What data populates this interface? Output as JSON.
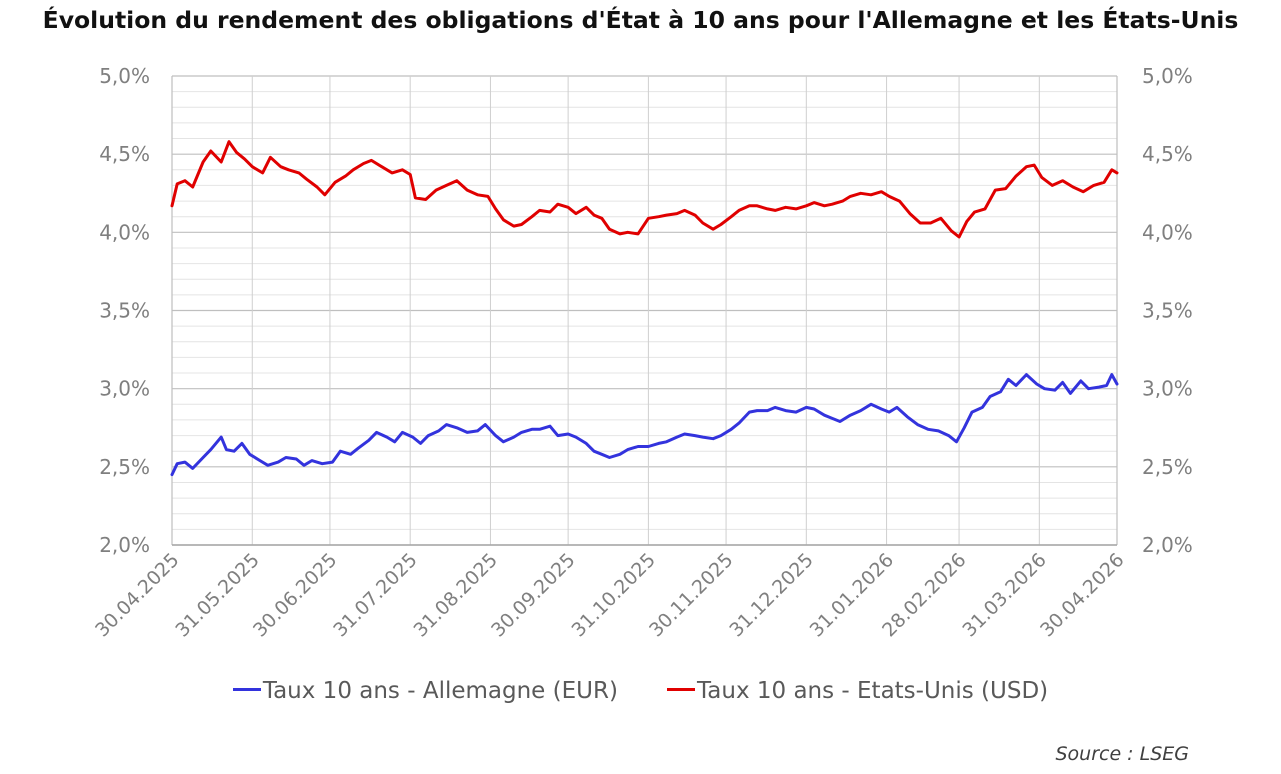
{
  "chart_data": {
    "type": "line",
    "title": "Évolution du rendement des obligations d'État à 10 ans pour l'Allemagne et les États-Unis",
    "source": "Source : LSEG",
    "y_left": {
      "ylim": [
        2.0,
        5.0
      ],
      "ticks": [
        "2,0%",
        "2,5%",
        "3,0%",
        "3,5%",
        "4,0%",
        "4,5%",
        "5,0%"
      ]
    },
    "y_right": {
      "ylim": [
        2.0,
        5.0
      ],
      "ticks": [
        "2,0%",
        "2,5%",
        "3,0%",
        "3,5%",
        "4,0%",
        "4,5%",
        "5,0%"
      ]
    },
    "x_start": "2025-04-30",
    "x_end": "2026-04-30",
    "x_ticks": [
      {
        "label": "30.04.2025",
        "date": "2025-04-30"
      },
      {
        "label": "31.05.2025",
        "date": "2025-05-31"
      },
      {
        "label": "30.06.2025",
        "date": "2025-06-30"
      },
      {
        "label": "31.07.2025",
        "date": "2025-07-31"
      },
      {
        "label": "31.08.2025",
        "date": "2025-08-31"
      },
      {
        "label": "30.09.2025",
        "date": "2025-09-30"
      },
      {
        "label": "31.10.2025",
        "date": "2025-10-31"
      },
      {
        "label": "30.11.2025",
        "date": "2025-11-30"
      },
      {
        "label": "31.12.2025",
        "date": "2025-12-31"
      },
      {
        "label": "31.01.2026",
        "date": "2026-01-31"
      },
      {
        "label": "28.02.2026",
        "date": "2026-02-28"
      },
      {
        "label": "31.03.2026",
        "date": "2026-03-31"
      },
      {
        "label": "30.04.2026",
        "date": "2026-04-30"
      }
    ],
    "grid": true,
    "legend_position": "bottom",
    "series": [
      {
        "name": "Taux 10 ans - Allemagne (EUR)",
        "color": "#3333dd",
        "axis": "left",
        "points": [
          [
            "2025-04-30",
            2.45
          ],
          [
            "2025-05-02",
            2.52
          ],
          [
            "2025-05-05",
            2.53
          ],
          [
            "2025-05-08",
            2.49
          ],
          [
            "2025-05-12",
            2.56
          ],
          [
            "2025-05-15",
            2.61
          ],
          [
            "2025-05-19",
            2.69
          ],
          [
            "2025-05-21",
            2.61
          ],
          [
            "2025-05-24",
            2.6
          ],
          [
            "2025-05-27",
            2.65
          ],
          [
            "2025-05-30",
            2.58
          ],
          [
            "2025-06-03",
            2.54
          ],
          [
            "2025-06-06",
            2.51
          ],
          [
            "2025-06-10",
            2.53
          ],
          [
            "2025-06-13",
            2.56
          ],
          [
            "2025-06-17",
            2.55
          ],
          [
            "2025-06-20",
            2.51
          ],
          [
            "2025-06-23",
            2.54
          ],
          [
            "2025-06-27",
            2.52
          ],
          [
            "2025-07-01",
            2.53
          ],
          [
            "2025-07-04",
            2.6
          ],
          [
            "2025-07-08",
            2.58
          ],
          [
            "2025-07-11",
            2.62
          ],
          [
            "2025-07-15",
            2.67
          ],
          [
            "2025-07-18",
            2.72
          ],
          [
            "2025-07-22",
            2.69
          ],
          [
            "2025-07-25",
            2.66
          ],
          [
            "2025-07-28",
            2.72
          ],
          [
            "2025-08-01",
            2.69
          ],
          [
            "2025-08-04",
            2.65
          ],
          [
            "2025-08-07",
            2.7
          ],
          [
            "2025-08-11",
            2.73
          ],
          [
            "2025-08-14",
            2.77
          ],
          [
            "2025-08-18",
            2.75
          ],
          [
            "2025-08-22",
            2.72
          ],
          [
            "2025-08-26",
            2.73
          ],
          [
            "2025-08-29",
            2.77
          ],
          [
            "2025-09-02",
            2.7
          ],
          [
            "2025-09-05",
            2.66
          ],
          [
            "2025-09-09",
            2.69
          ],
          [
            "2025-09-12",
            2.72
          ],
          [
            "2025-09-16",
            2.74
          ],
          [
            "2025-09-19",
            2.74
          ],
          [
            "2025-09-23",
            2.76
          ],
          [
            "2025-09-26",
            2.7
          ],
          [
            "2025-09-30",
            2.71
          ],
          [
            "2025-10-03",
            2.69
          ],
          [
            "2025-10-07",
            2.65
          ],
          [
            "2025-10-10",
            2.6
          ],
          [
            "2025-10-13",
            2.58
          ],
          [
            "2025-10-16",
            2.56
          ],
          [
            "2025-10-20",
            2.58
          ],
          [
            "2025-10-23",
            2.61
          ],
          [
            "2025-10-27",
            2.63
          ],
          [
            "2025-10-31",
            2.63
          ],
          [
            "2025-11-04",
            2.65
          ],
          [
            "2025-11-07",
            2.66
          ],
          [
            "2025-11-11",
            2.69
          ],
          [
            "2025-11-14",
            2.71
          ],
          [
            "2025-11-18",
            2.7
          ],
          [
            "2025-11-21",
            2.69
          ],
          [
            "2025-11-25",
            2.68
          ],
          [
            "2025-11-28",
            2.7
          ],
          [
            "2025-12-02",
            2.74
          ],
          [
            "2025-12-05",
            2.78
          ],
          [
            "2025-12-09",
            2.85
          ],
          [
            "2025-12-12",
            2.86
          ],
          [
            "2025-12-16",
            2.86
          ],
          [
            "2025-12-19",
            2.88
          ],
          [
            "2025-12-23",
            2.86
          ],
          [
            "2025-12-27",
            2.85
          ],
          [
            "2025-12-31",
            2.88
          ],
          [
            "2026-01-03",
            2.87
          ],
          [
            "2026-01-07",
            2.83
          ],
          [
            "2026-01-10",
            2.81
          ],
          [
            "2026-01-13",
            2.79
          ],
          [
            "2026-01-17",
            2.83
          ],
          [
            "2026-01-21",
            2.86
          ],
          [
            "2026-01-25",
            2.9
          ],
          [
            "2026-01-29",
            2.87
          ],
          [
            "2026-02-01",
            2.85
          ],
          [
            "2026-02-04",
            2.88
          ],
          [
            "2026-02-08",
            2.82
          ],
          [
            "2026-02-12",
            2.77
          ],
          [
            "2026-02-16",
            2.74
          ],
          [
            "2026-02-20",
            2.73
          ],
          [
            "2026-02-24",
            2.7
          ],
          [
            "2026-02-27",
            2.66
          ],
          [
            "2026-03-02",
            2.75
          ],
          [
            "2026-03-05",
            2.85
          ],
          [
            "2026-03-09",
            2.88
          ],
          [
            "2026-03-12",
            2.95
          ],
          [
            "2026-03-16",
            2.98
          ],
          [
            "2026-03-19",
            3.06
          ],
          [
            "2026-03-22",
            3.02
          ],
          [
            "2026-03-26",
            3.09
          ],
          [
            "2026-03-30",
            3.03
          ],
          [
            "2026-04-02",
            3.0
          ],
          [
            "2026-04-06",
            2.99
          ],
          [
            "2026-04-09",
            3.04
          ],
          [
            "2026-04-12",
            2.97
          ],
          [
            "2026-04-16",
            3.05
          ],
          [
            "2026-04-19",
            3.0
          ],
          [
            "2026-04-23",
            3.01
          ],
          [
            "2026-04-26",
            3.02
          ],
          [
            "2026-04-28",
            3.09
          ],
          [
            "2026-04-30",
            3.03
          ]
        ]
      },
      {
        "name": "Taux 10 ans - Etats-Unis (USD)",
        "color": "#e00000",
        "axis": "left",
        "points": [
          [
            "2025-04-30",
            4.17
          ],
          [
            "2025-05-02",
            4.31
          ],
          [
            "2025-05-05",
            4.33
          ],
          [
            "2025-05-08",
            4.29
          ],
          [
            "2025-05-12",
            4.45
          ],
          [
            "2025-05-15",
            4.52
          ],
          [
            "2025-05-19",
            4.45
          ],
          [
            "2025-05-22",
            4.58
          ],
          [
            "2025-05-25",
            4.51
          ],
          [
            "2025-05-28",
            4.47
          ],
          [
            "2025-05-31",
            4.42
          ],
          [
            "2025-06-04",
            4.38
          ],
          [
            "2025-06-07",
            4.48
          ],
          [
            "2025-06-11",
            4.42
          ],
          [
            "2025-06-14",
            4.4
          ],
          [
            "2025-06-18",
            4.38
          ],
          [
            "2025-06-21",
            4.34
          ],
          [
            "2025-06-25",
            4.29
          ],
          [
            "2025-06-28",
            4.24
          ],
          [
            "2025-07-02",
            4.32
          ],
          [
            "2025-07-06",
            4.36
          ],
          [
            "2025-07-09",
            4.4
          ],
          [
            "2025-07-13",
            4.44
          ],
          [
            "2025-07-16",
            4.46
          ],
          [
            "2025-07-20",
            4.42
          ],
          [
            "2025-07-24",
            4.38
          ],
          [
            "2025-07-28",
            4.4
          ],
          [
            "2025-07-31",
            4.37
          ],
          [
            "2025-08-02",
            4.22
          ],
          [
            "2025-08-06",
            4.21
          ],
          [
            "2025-08-10",
            4.27
          ],
          [
            "2025-08-14",
            4.3
          ],
          [
            "2025-08-18",
            4.33
          ],
          [
            "2025-08-22",
            4.27
          ],
          [
            "2025-08-26",
            4.24
          ],
          [
            "2025-08-30",
            4.23
          ],
          [
            "2025-09-02",
            4.15
          ],
          [
            "2025-09-05",
            4.08
          ],
          [
            "2025-09-09",
            4.04
          ],
          [
            "2025-09-12",
            4.05
          ],
          [
            "2025-09-16",
            4.1
          ],
          [
            "2025-09-19",
            4.14
          ],
          [
            "2025-09-23",
            4.13
          ],
          [
            "2025-09-26",
            4.18
          ],
          [
            "2025-09-30",
            4.16
          ],
          [
            "2025-10-03",
            4.12
          ],
          [
            "2025-10-07",
            4.16
          ],
          [
            "2025-10-10",
            4.11
          ],
          [
            "2025-10-13",
            4.09
          ],
          [
            "2025-10-16",
            4.02
          ],
          [
            "2025-10-20",
            3.99
          ],
          [
            "2025-10-23",
            4.0
          ],
          [
            "2025-10-27",
            3.99
          ],
          [
            "2025-10-31",
            4.09
          ],
          [
            "2025-11-04",
            4.1
          ],
          [
            "2025-11-07",
            4.11
          ],
          [
            "2025-11-11",
            4.12
          ],
          [
            "2025-11-14",
            4.14
          ],
          [
            "2025-11-18",
            4.11
          ],
          [
            "2025-11-21",
            4.06
          ],
          [
            "2025-11-25",
            4.02
          ],
          [
            "2025-11-28",
            4.05
          ],
          [
            "2025-12-02",
            4.1
          ],
          [
            "2025-12-05",
            4.14
          ],
          [
            "2025-12-09",
            4.17
          ],
          [
            "2025-12-12",
            4.17
          ],
          [
            "2025-12-16",
            4.15
          ],
          [
            "2025-12-19",
            4.14
          ],
          [
            "2025-12-23",
            4.16
          ],
          [
            "2025-12-27",
            4.15
          ],
          [
            "2025-12-31",
            4.17
          ],
          [
            "2026-01-03",
            4.19
          ],
          [
            "2026-01-07",
            4.17
          ],
          [
            "2026-01-10",
            4.18
          ],
          [
            "2026-01-14",
            4.2
          ],
          [
            "2026-01-17",
            4.23
          ],
          [
            "2026-01-21",
            4.25
          ],
          [
            "2026-01-25",
            4.24
          ],
          [
            "2026-01-29",
            4.26
          ],
          [
            "2026-02-01",
            4.23
          ],
          [
            "2026-02-05",
            4.2
          ],
          [
            "2026-02-09",
            4.12
          ],
          [
            "2026-02-13",
            4.06
          ],
          [
            "2026-02-17",
            4.06
          ],
          [
            "2026-02-21",
            4.09
          ],
          [
            "2026-02-25",
            4.01
          ],
          [
            "2026-02-28",
            3.97
          ],
          [
            "2026-03-03",
            4.07
          ],
          [
            "2026-03-06",
            4.13
          ],
          [
            "2026-03-10",
            4.15
          ],
          [
            "2026-03-14",
            4.27
          ],
          [
            "2026-03-18",
            4.28
          ],
          [
            "2026-03-22",
            4.36
          ],
          [
            "2026-03-26",
            4.42
          ],
          [
            "2026-03-29",
            4.43
          ],
          [
            "2026-04-01",
            4.35
          ],
          [
            "2026-04-05",
            4.3
          ],
          [
            "2026-04-09",
            4.33
          ],
          [
            "2026-04-13",
            4.29
          ],
          [
            "2026-04-17",
            4.26
          ],
          [
            "2026-04-21",
            4.3
          ],
          [
            "2026-04-25",
            4.32
          ],
          [
            "2026-04-28",
            4.4
          ],
          [
            "2026-04-30",
            4.38
          ]
        ]
      }
    ]
  }
}
